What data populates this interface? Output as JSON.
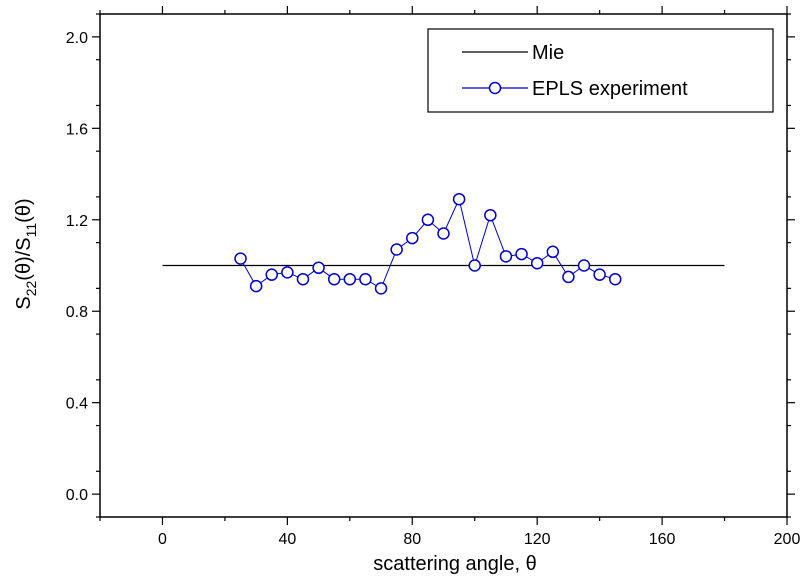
{
  "chart_data": {
    "type": "line",
    "title": "",
    "xlabel": "scattering angle, θ",
    "ylabel_parts": {
      "s": "S",
      "sub1": "22",
      "mid": "(θ)/S",
      "sub2": "11",
      "end": "(θ)"
    },
    "xlim": [
      -20,
      200
    ],
    "ylim": [
      -0.1,
      2.1
    ],
    "xticks": [
      0,
      40,
      80,
      120,
      160,
      200
    ],
    "xtick_labels": [
      "0",
      "40",
      "80",
      "120",
      "160",
      "200"
    ],
    "yticks": [
      0.0,
      0.4,
      0.8,
      1.2,
      1.6,
      2.0
    ],
    "ytick_labels": [
      "0.0",
      "0.4",
      "0.8",
      "1.2",
      "1.6",
      "2.0"
    ],
    "grid": false,
    "legend_position": "top-right",
    "series": [
      {
        "name": "Mie",
        "style": "line",
        "color": "#000000",
        "x": [
          0,
          180
        ],
        "y": [
          1.0,
          1.0
        ]
      },
      {
        "name": "EPLS experiment",
        "style": "line-circle",
        "color": "#0000cc",
        "x": [
          25,
          30,
          35,
          40,
          45,
          50,
          55,
          60,
          65,
          70,
          75,
          80,
          85,
          90,
          95,
          100,
          105,
          110,
          115,
          120,
          125,
          130,
          135,
          140,
          145
        ],
        "y": [
          1.03,
          0.91,
          0.96,
          0.97,
          0.94,
          0.99,
          0.94,
          0.94,
          0.94,
          0.9,
          1.07,
          1.12,
          1.2,
          1.14,
          1.29,
          1.0,
          1.22,
          1.04,
          1.05,
          1.01,
          1.06,
          0.95,
          1.0,
          0.96,
          0.94
        ]
      }
    ]
  }
}
